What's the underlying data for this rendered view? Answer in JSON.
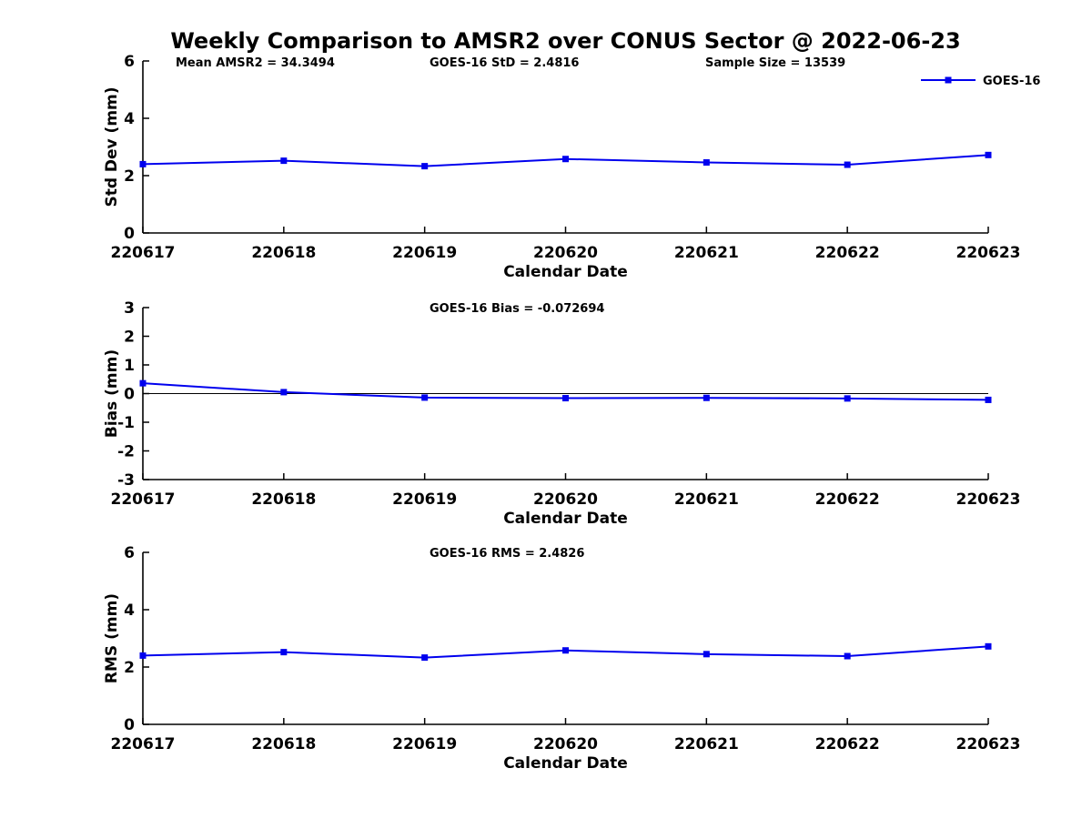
{
  "title": "Weekly Comparison to AMSR2 over CONUS Sector @ 2022-06-23",
  "colors": {
    "line": "#0000EE",
    "axis": "#000000",
    "text": "#000000"
  },
  "chart_data": [
    {
      "id": "std_dev",
      "type": "line",
      "ylabel": "Std Dev (mm)",
      "xlabel": "Calendar Date",
      "categories": [
        "220617",
        "220618",
        "220619",
        "220620",
        "220621",
        "220622",
        "220623"
      ],
      "series": [
        {
          "name": "GOES-16",
          "values": [
            2.4,
            2.52,
            2.33,
            2.58,
            2.46,
            2.38,
            2.72
          ]
        }
      ],
      "ylim": [
        0,
        6
      ],
      "yticks": [
        0,
        2,
        4,
        6
      ],
      "grid": false,
      "zero_line": false,
      "annotations": [
        {
          "text": "Mean AMSR2 = 34.3494",
          "slot": 0
        },
        {
          "text": "GOES-16 StD = 2.4816",
          "slot": 1
        },
        {
          "text": "Sample Size = 13539",
          "slot": 2
        }
      ],
      "legend": {
        "label": "GOES-16",
        "position": "top-right"
      }
    },
    {
      "id": "bias",
      "type": "line",
      "ylabel": "Bias (mm)",
      "xlabel": "Calendar Date",
      "categories": [
        "220617",
        "220618",
        "220619",
        "220620",
        "220621",
        "220622",
        "220623"
      ],
      "series": [
        {
          "name": "GOES-16",
          "values": [
            0.36,
            0.05,
            -0.14,
            -0.16,
            -0.15,
            -0.17,
            -0.22
          ]
        }
      ],
      "ylim": [
        -3,
        3
      ],
      "yticks": [
        -3,
        -2,
        -1,
        0,
        1,
        2,
        3
      ],
      "grid": false,
      "zero_line": true,
      "annotations": [
        {
          "text": "GOES-16 Bias  = -0.072694",
          "slot": 1
        }
      ],
      "legend": null
    },
    {
      "id": "rms",
      "type": "line",
      "ylabel": "RMS (mm)",
      "xlabel": "Calendar Date",
      "categories": [
        "220617",
        "220618",
        "220619",
        "220620",
        "220621",
        "220622",
        "220623"
      ],
      "series": [
        {
          "name": "GOES-16",
          "values": [
            2.4,
            2.52,
            2.33,
            2.58,
            2.45,
            2.38,
            2.72
          ]
        }
      ],
      "ylim": [
        0,
        6
      ],
      "yticks": [
        0,
        2,
        4,
        6
      ],
      "grid": false,
      "zero_line": false,
      "annotations": [
        {
          "text": "GOES-16 RMS = 2.4826",
          "slot": 1
        }
      ],
      "legend": null
    }
  ]
}
